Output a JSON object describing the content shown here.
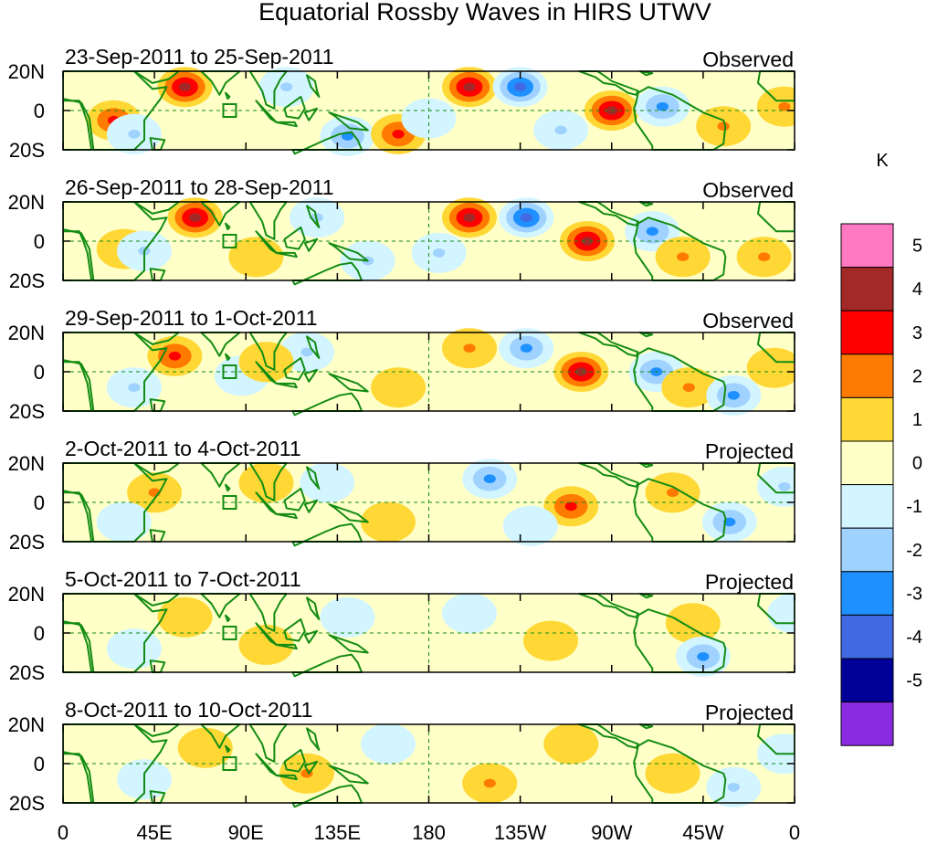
{
  "title": "Equatorial Rossby Waves in HIRS UTWV",
  "panels": [
    {
      "date_range": "23-Sep-2011 to 25-Sep-2011",
      "kind": "Observed"
    },
    {
      "date_range": "26-Sep-2011 to 28-Sep-2011",
      "kind": "Observed"
    },
    {
      "date_range": "29-Sep-2011 to 1-Oct-2011",
      "kind": "Observed"
    },
    {
      "date_range": "2-Oct-2011 to 4-Oct-2011",
      "kind": "Projected"
    },
    {
      "date_range": "5-Oct-2011 to 7-Oct-2011",
      "kind": "Projected"
    },
    {
      "date_range": "8-Oct-2011 to 10-Oct-2011",
      "kind": "Projected"
    }
  ],
  "lat_labels": [
    "20N",
    "0",
    "20S"
  ],
  "lon_labels": [
    "0",
    "45E",
    "90E",
    "135E",
    "180",
    "135W",
    "90W",
    "45W",
    "0"
  ],
  "colorbar": {
    "unit": "K",
    "tick_labels": [
      "5",
      "4",
      "3",
      "2",
      "1",
      "0",
      "-1",
      "-2",
      "-3",
      "-4",
      "-5"
    ],
    "colors": [
      "#ff79c2",
      "#a32828",
      "#ff0000",
      "#ff7a00",
      "#ffd836",
      "#ffffc8",
      "#d2f5ff",
      "#a0d2ff",
      "#1e90ff",
      "#4169e1",
      "#000099",
      "#8a2be2"
    ]
  },
  "map_colors": {
    "coast": "#138c13"
  },
  "anomalies": [
    [
      {
        "lon": 25,
        "lat": -5,
        "v": 3
      },
      {
        "lon": 60,
        "lat": 12,
        "v": 4
      },
      {
        "lon": 35,
        "lat": -12,
        "v": -2
      },
      {
        "lon": 110,
        "lat": 12,
        "v": -2
      },
      {
        "lon": 140,
        "lat": -13,
        "v": -3
      },
      {
        "lon": 165,
        "lat": -12,
        "v": 3
      },
      {
        "lon": 200,
        "lat": 12,
        "v": 4
      },
      {
        "lon": 225,
        "lat": 12,
        "v": -4
      },
      {
        "lon": 270,
        "lat": 0,
        "v": 4
      },
      {
        "lon": 295,
        "lat": 2,
        "v": -3
      },
      {
        "lon": 325,
        "lat": -8,
        "v": 2
      },
      {
        "lon": 245,
        "lat": -10,
        "v": -2
      },
      {
        "lon": 180,
        "lat": -4,
        "v": -1
      },
      {
        "lon": 355,
        "lat": 2,
        "v": 2
      }
    ],
    [
      {
        "lon": 30,
        "lat": -4,
        "v": 2
      },
      {
        "lon": 65,
        "lat": 12,
        "v": 4
      },
      {
        "lon": 40,
        "lat": -5,
        "v": -2
      },
      {
        "lon": 125,
        "lat": 12,
        "v": -2
      },
      {
        "lon": 150,
        "lat": -10,
        "v": -2
      },
      {
        "lon": 200,
        "lat": 12,
        "v": 4
      },
      {
        "lon": 228,
        "lat": 12,
        "v": -4
      },
      {
        "lon": 258,
        "lat": 0,
        "v": 4
      },
      {
        "lon": 290,
        "lat": 5,
        "v": -3
      },
      {
        "lon": 305,
        "lat": -8,
        "v": 2
      },
      {
        "lon": 345,
        "lat": -8,
        "v": 2
      },
      {
        "lon": 95,
        "lat": -8,
        "v": 1
      },
      {
        "lon": 185,
        "lat": -6,
        "v": -2
      }
    ],
    [
      {
        "lon": 55,
        "lat": 8,
        "v": 3
      },
      {
        "lon": 35,
        "lat": -8,
        "v": -2
      },
      {
        "lon": 88,
        "lat": -2,
        "v": -1
      },
      {
        "lon": 120,
        "lat": 10,
        "v": -2
      },
      {
        "lon": 200,
        "lat": 12,
        "v": 2
      },
      {
        "lon": 228,
        "lat": 12,
        "v": -3
      },
      {
        "lon": 255,
        "lat": 0,
        "v": 4
      },
      {
        "lon": 292,
        "lat": 0,
        "v": -3
      },
      {
        "lon": 308,
        "lat": -8,
        "v": 2
      },
      {
        "lon": 330,
        "lat": -12,
        "v": -3
      },
      {
        "lon": 165,
        "lat": -8,
        "v": 1
      },
      {
        "lon": 100,
        "lat": 5,
        "v": 1
      },
      {
        "lon": 350,
        "lat": 2,
        "v": 1
      }
    ],
    [
      {
        "lon": 45,
        "lat": 5,
        "v": 2
      },
      {
        "lon": 30,
        "lat": -10,
        "v": -1
      },
      {
        "lon": 130,
        "lat": 10,
        "v": -1
      },
      {
        "lon": 160,
        "lat": -10,
        "v": 1
      },
      {
        "lon": 210,
        "lat": 12,
        "v": -3
      },
      {
        "lon": 250,
        "lat": -2,
        "v": 3
      },
      {
        "lon": 300,
        "lat": 5,
        "v": 2
      },
      {
        "lon": 328,
        "lat": -10,
        "v": -3
      },
      {
        "lon": 230,
        "lat": -12,
        "v": -1
      },
      {
        "lon": 100,
        "lat": 10,
        "v": 1
      },
      {
        "lon": 355,
        "lat": 8,
        "v": -2
      }
    ],
    [
      {
        "lon": 60,
        "lat": 8,
        "v": 1
      },
      {
        "lon": 35,
        "lat": -8,
        "v": -1
      },
      {
        "lon": 140,
        "lat": 8,
        "v": -1
      },
      {
        "lon": 200,
        "lat": 10,
        "v": -1
      },
      {
        "lon": 240,
        "lat": -4,
        "v": 1
      },
      {
        "lon": 310,
        "lat": 5,
        "v": 1
      },
      {
        "lon": 315,
        "lat": -12,
        "v": -3
      },
      {
        "lon": 100,
        "lat": -6,
        "v": 1
      },
      {
        "lon": 360,
        "lat": 10,
        "v": -1
      }
    ],
    [
      {
        "lon": 70,
        "lat": 8,
        "v": 1
      },
      {
        "lon": 40,
        "lat": -8,
        "v": -1
      },
      {
        "lon": 120,
        "lat": -5,
        "v": 2
      },
      {
        "lon": 210,
        "lat": -10,
        "v": 2
      },
      {
        "lon": 250,
        "lat": 10,
        "v": 1
      },
      {
        "lon": 300,
        "lat": -5,
        "v": 1
      },
      {
        "lon": 330,
        "lat": -12,
        "v": -2
      },
      {
        "lon": 160,
        "lat": 10,
        "v": -1
      },
      {
        "lon": 355,
        "lat": 5,
        "v": -1
      }
    ]
  ]
}
